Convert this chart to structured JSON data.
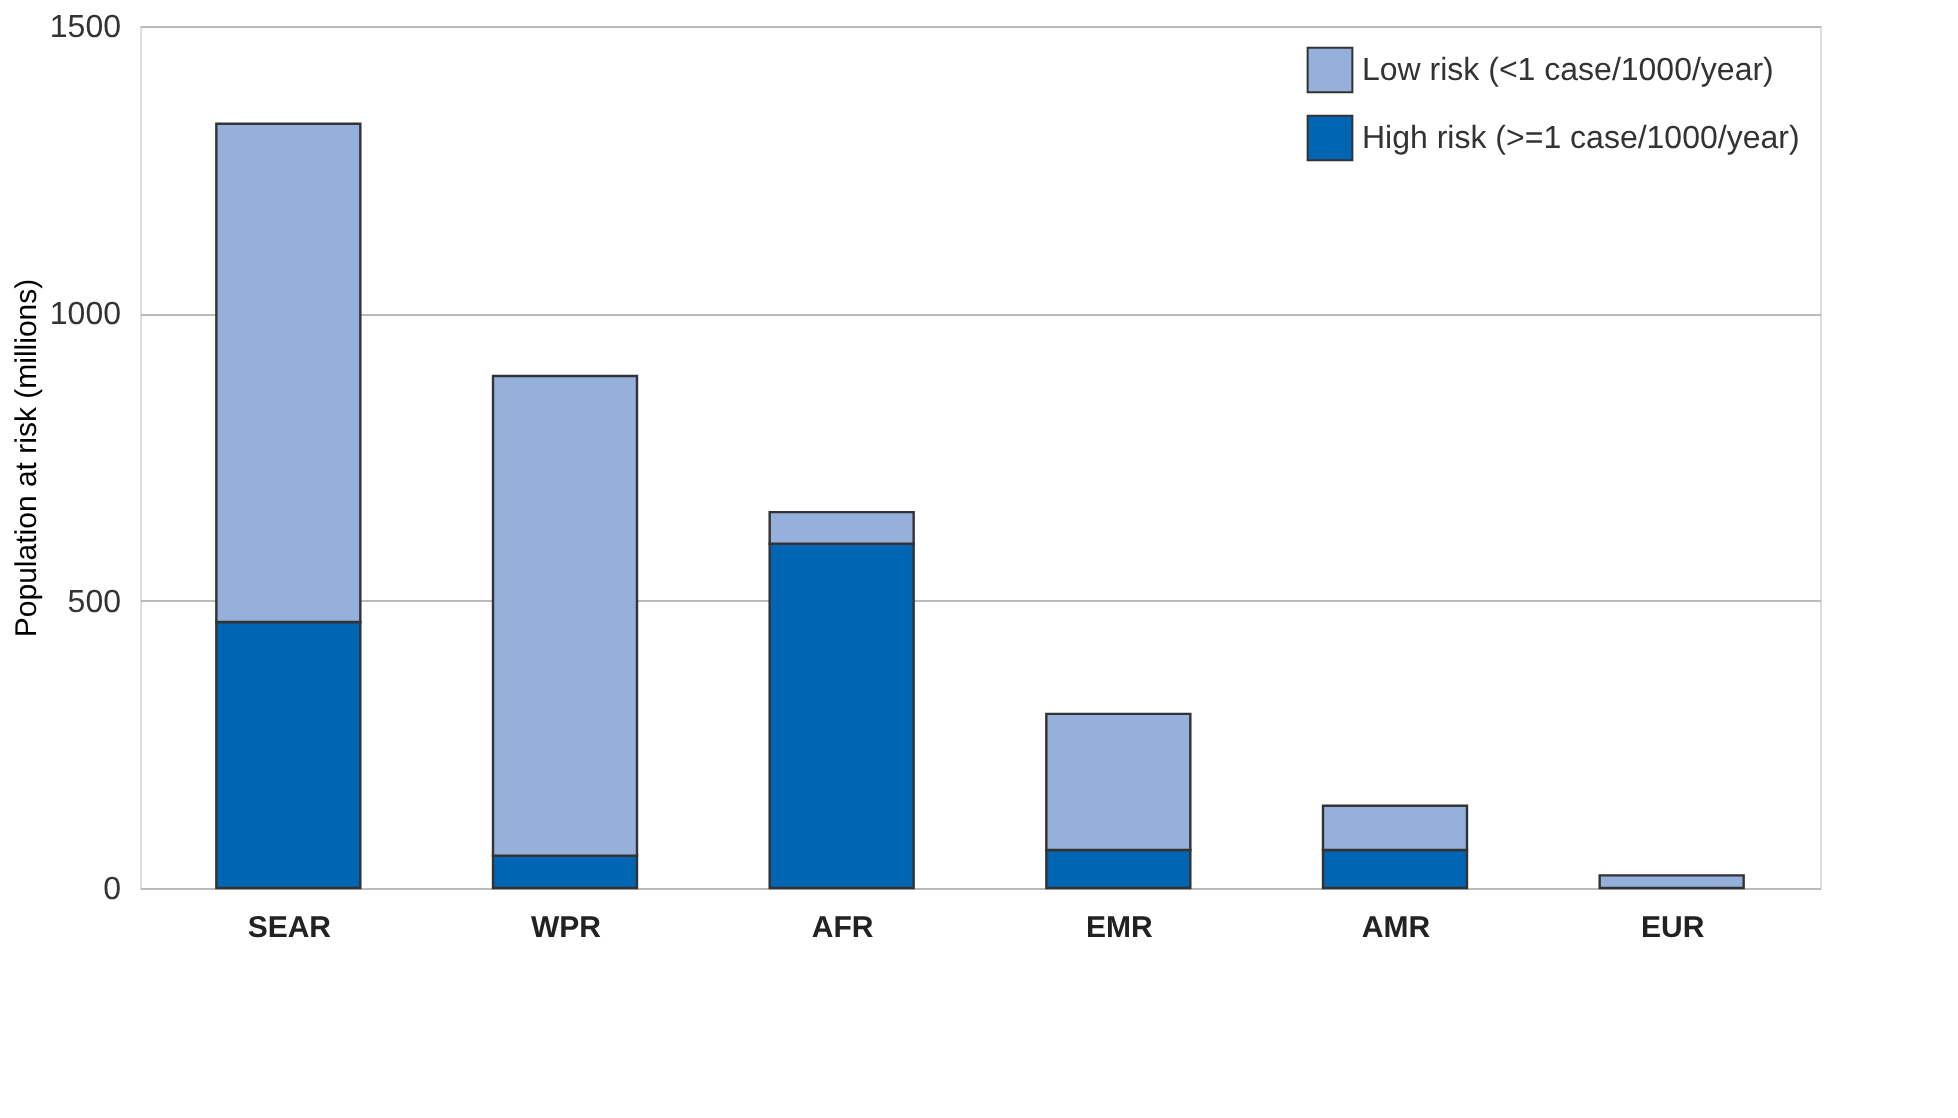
{
  "chart_data": {
    "type": "bar",
    "stacked": true,
    "ylabel": "Population at risk (millions)",
    "categories": [
      "SEAR",
      "WPR",
      "AFR",
      "EMR",
      "AMR",
      "EUR"
    ],
    "series": [
      {
        "name": "High risk (>=1 case/1000/year)",
        "color": "#0066b3",
        "values": [
          463,
          56,
          599,
          66,
          66,
          null
        ]
      },
      {
        "name": "Low risk (<1 case/1000/year)",
        "color": "#95b0db",
        "values": [
          867,
          835,
          55,
          237,
          77,
          22
        ]
      }
    ],
    "ylim": [
      0,
      1500
    ],
    "yticks": [
      0,
      500,
      1000,
      1500
    ],
    "grid": "y",
    "legend": "top right"
  }
}
